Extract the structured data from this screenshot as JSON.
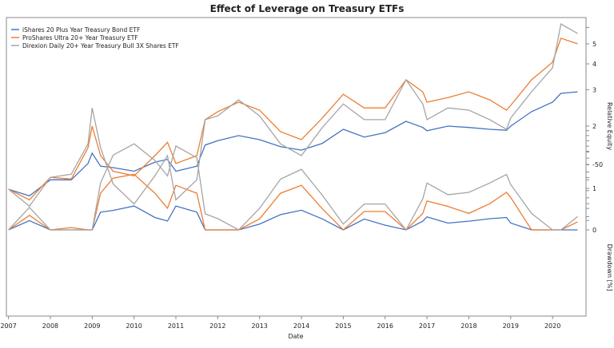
{
  "chart_data": {
    "type": "line",
    "title": "Effect of Leverage on Treasury ETFs",
    "xlabel": "Date",
    "ylabel_top": "Relative Equity",
    "ylabel_bottom": "Drawdown [%]",
    "x_ticks": [
      "2007",
      "2008",
      "2009",
      "2010",
      "2011",
      "2012",
      "2013",
      "2014",
      "2015",
      "2016",
      "2017",
      "2018",
      "2019",
      "2020"
    ],
    "y_ticks_top": [
      "1",
      "2",
      "3",
      "4",
      "5"
    ],
    "y_ticks_bottom": [
      "0",
      "-50"
    ],
    "y_scale_top": "log",
    "xlim": [
      2006.95,
      2020.8
    ],
    "ylim_top": [
      0.7,
      6.7
    ],
    "ylim_bottom": [
      -65,
      0
    ],
    "grid": false,
    "legend_position": "top-left",
    "x": [
      2007.0,
      2007.5,
      2008.0,
      2008.5,
      2008.9,
      2009.0,
      2009.2,
      2009.5,
      2010.0,
      2010.5,
      2010.8,
      2011.0,
      2011.5,
      2011.7,
      2012.0,
      2012.5,
      2013.0,
      2013.5,
      2014.0,
      2014.5,
      2015.0,
      2015.5,
      2016.0,
      2016.5,
      2016.9,
      2017.0,
      2017.5,
      2018.0,
      2018.5,
      2018.9,
      2019.0,
      2019.5,
      2020.0,
      2020.2,
      2020.6
    ],
    "series": [
      {
        "name": "iShares 20 Plus Year Treasury Bond ETF",
        "color": "#4472c4",
        "values": [
          0.99,
          0.92,
          1.1,
          1.1,
          1.32,
          1.48,
          1.28,
          1.26,
          1.21,
          1.34,
          1.38,
          1.21,
          1.28,
          1.62,
          1.7,
          1.8,
          1.72,
          1.59,
          1.53,
          1.65,
          1.93,
          1.77,
          1.86,
          2.11,
          1.97,
          1.9,
          2.0,
          1.97,
          1.93,
          1.91,
          2.0,
          2.35,
          2.61,
          2.88,
          2.93
        ]
      },
      {
        "name": "ProShares Ultra 20+ Year Treasury ETF",
        "color": "#ed7d31",
        "values": [
          0.99,
          0.88,
          1.13,
          1.11,
          1.57,
          2.0,
          1.44,
          1.21,
          1.15,
          1.44,
          1.67,
          1.32,
          1.44,
          2.15,
          2.35,
          2.61,
          2.39,
          1.88,
          1.72,
          2.19,
          2.85,
          2.45,
          2.45,
          3.35,
          2.93,
          2.61,
          2.75,
          2.93,
          2.68,
          2.39,
          2.52,
          3.35,
          4.07,
          5.32,
          5.0
        ]
      },
      {
        "name": "Direxion Daily 20+ Year Treasury Bull 3X Shares ETF",
        "color": "#a5a5a5",
        "values": [
          0.99,
          0.82,
          1.13,
          1.17,
          1.64,
          2.45,
          1.57,
          1.05,
          0.84,
          1.15,
          1.44,
          0.88,
          1.1,
          2.15,
          2.24,
          2.68,
          2.24,
          1.64,
          1.44,
          1.97,
          2.56,
          2.15,
          2.15,
          3.35,
          2.56,
          2.15,
          2.45,
          2.39,
          2.15,
          1.93,
          2.19,
          2.93,
          3.83,
          6.24,
          5.61
        ]
      }
    ]
  }
}
